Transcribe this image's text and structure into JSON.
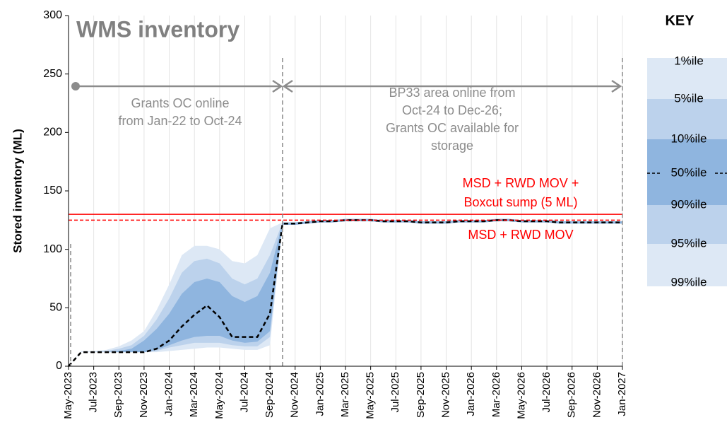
{
  "chart_data": {
    "type": "percentile_band",
    "title": "WMS inventory",
    "y_label": "Stored inventory (ML)",
    "legend_title": "KEY",
    "x": [
      "2023-05",
      "2023-06",
      "2023-07",
      "2023-08",
      "2023-09",
      "2023-10",
      "2023-11",
      "2023-12",
      "2024-01",
      "2024-02",
      "2024-03",
      "2024-04",
      "2024-05",
      "2024-06",
      "2024-07",
      "2024-08",
      "2024-09",
      "2024-10",
      "2024-11",
      "2024-12",
      "2025-01",
      "2025-02",
      "2025-03",
      "2025-04",
      "2025-05",
      "2025-06",
      "2025-07",
      "2025-08",
      "2025-09",
      "2025-10",
      "2025-11",
      "2025-12",
      "2026-01",
      "2026-02",
      "2026-03",
      "2026-04",
      "2026-05",
      "2026-06",
      "2026-07",
      "2026-08",
      "2026-09",
      "2026-10",
      "2026-11",
      "2026-12",
      "2027-01"
    ],
    "xticks": [
      {
        "value": "2023-05",
        "label": "May-2023"
      },
      {
        "value": "2023-07",
        "label": "Jul-2023"
      },
      {
        "value": "2023-09",
        "label": "Sep-2023"
      },
      {
        "value": "2023-11",
        "label": "Nov-2023"
      },
      {
        "value": "2024-01",
        "label": "Jan-2024"
      },
      {
        "value": "2024-03",
        "label": "Mar-2024"
      },
      {
        "value": "2024-05",
        "label": "May-2024"
      },
      {
        "value": "2024-07",
        "label": "Jul-2024"
      },
      {
        "value": "2024-09",
        "label": "Sep-2024"
      },
      {
        "value": "2024-11",
        "label": "Nov-2024"
      },
      {
        "value": "2025-01",
        "label": "Jan-2025"
      },
      {
        "value": "2025-03",
        "label": "Mar-2025"
      },
      {
        "value": "2025-05",
        "label": "May-2025"
      },
      {
        "value": "2025-07",
        "label": "Jul-2025"
      },
      {
        "value": "2025-09",
        "label": "Sep-2025"
      },
      {
        "value": "2025-11",
        "label": "Nov-2025"
      },
      {
        "value": "2026-01",
        "label": "Jan-2026"
      },
      {
        "value": "2026-03",
        "label": "Mar-2026"
      },
      {
        "value": "2026-05",
        "label": "May-2026"
      },
      {
        "value": "2026-07",
        "label": "Jul-2026"
      },
      {
        "value": "2026-09",
        "label": "Sep-2026"
      },
      {
        "value": "2026-11",
        "label": "Nov-2026"
      },
      {
        "value": "2027-01",
        "label": "Jan-2027"
      }
    ],
    "ylim": [
      0,
      300
    ],
    "yticks": [
      0,
      50,
      100,
      150,
      200,
      250,
      300
    ],
    "grid": true,
    "series": [
      {
        "name": "1%ile",
        "color": "#dde8f5",
        "values": [
          0,
          12,
          12,
          12,
          12,
          12,
          12,
          12,
          13,
          14,
          15,
          16,
          16,
          15,
          14,
          14,
          18,
          121,
          121,
          122,
          123,
          123,
          124,
          124,
          124,
          123,
          123,
          123,
          122,
          122,
          122,
          123,
          123,
          123,
          124,
          124,
          123,
          123,
          123,
          122,
          122,
          122,
          122,
          122,
          122
        ]
      },
      {
        "name": "5%ile",
        "color": "#bcd2ec",
        "values": [
          0,
          12,
          12,
          12,
          12,
          12,
          12,
          13,
          16,
          18,
          20,
          20,
          20,
          18,
          17,
          17,
          25,
          121,
          121,
          122,
          123,
          123,
          124,
          124,
          124,
          123,
          123,
          123,
          122,
          122,
          122,
          123,
          123,
          123,
          124,
          124,
          123,
          123,
          123,
          122,
          122,
          122,
          122,
          122,
          122
        ]
      },
      {
        "name": "10%ile",
        "color": "#8fb5df",
        "values": [
          0,
          12,
          12,
          12,
          12,
          12,
          12,
          14,
          18,
          22,
          25,
          26,
          26,
          22,
          20,
          21,
          30,
          121,
          121,
          122,
          123,
          123,
          124,
          124,
          124,
          123,
          123,
          123,
          122,
          122,
          122,
          123,
          123,
          123,
          124,
          124,
          123,
          123,
          123,
          122,
          122,
          122,
          122,
          122,
          122
        ]
      },
      {
        "name": "50%ile",
        "color": "#000000",
        "values": [
          0,
          12,
          12,
          12,
          12,
          12,
          12,
          15,
          22,
          34,
          44,
          52,
          42,
          25,
          25,
          25,
          45,
          122,
          122,
          123,
          124,
          124,
          125,
          125,
          125,
          124,
          124,
          124,
          123,
          123,
          123,
          124,
          124,
          124,
          125,
          125,
          124,
          124,
          124,
          123,
          123,
          123,
          123,
          123,
          123
        ]
      },
      {
        "name": "90%ile",
        "color": "#8fb5df",
        "values": [
          0,
          12,
          12,
          12,
          13,
          15,
          22,
          32,
          45,
          62,
          72,
          75,
          72,
          60,
          55,
          60,
          80,
          123,
          123,
          124,
          125,
          125,
          126,
          126,
          126,
          125,
          125,
          125,
          124,
          124,
          124,
          125,
          125,
          125,
          126,
          126,
          125,
          125,
          125,
          124,
          124,
          124,
          124,
          124,
          124
        ]
      },
      {
        "name": "95%ile",
        "color": "#bcd2ec",
        "values": [
          0,
          12,
          12,
          13,
          15,
          18,
          26,
          40,
          58,
          80,
          90,
          92,
          88,
          75,
          70,
          75,
          95,
          123,
          123,
          124,
          125,
          125,
          126,
          126,
          126,
          125,
          125,
          125,
          124,
          124,
          124,
          125,
          125,
          125,
          126,
          126,
          125,
          125,
          125,
          124,
          124,
          124,
          124,
          124,
          124
        ]
      },
      {
        "name": "99%ile",
        "color": "#dde8f5",
        "values": [
          0,
          13,
          13,
          14,
          17,
          22,
          30,
          48,
          70,
          95,
          103,
          103,
          100,
          90,
          88,
          95,
          118,
          123,
          123,
          124,
          125,
          125,
          126,
          126,
          126,
          125,
          125,
          125,
          124,
          124,
          124,
          125,
          125,
          125,
          126,
          126,
          125,
          125,
          125,
          124,
          124,
          124,
          124,
          124,
          124
        ]
      }
    ],
    "reference_lines": [
      {
        "value": 130,
        "color": "#ff0000",
        "style": "solid",
        "label": [
          "MSD + RWD MOV +",
          "Boxcut sump (5 ML)"
        ]
      },
      {
        "value": 125,
        "color": "#ff0000",
        "style": "dashed",
        "label": [
          "MSD + RWD MOV"
        ]
      }
    ],
    "vlines": [
      "2023-05",
      "2024-10",
      "2027-01"
    ],
    "annotations": [
      {
        "lines": [
          "Grants OC online",
          "from Jan-22  to Oct-24"
        ]
      },
      {
        "lines": [
          "BP33 area online from",
          "Oct-24 to Dec-26;",
          "Grants OC available  for",
          "storage"
        ]
      }
    ]
  }
}
